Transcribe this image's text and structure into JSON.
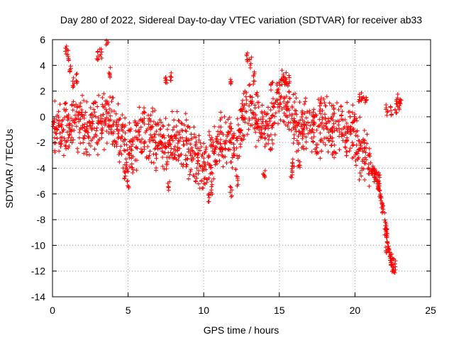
{
  "chart_data": {
    "type": "scatter",
    "title": "Day 280 of 2022, Sidereal Day-to-day VTEC variation (SDTVAR) for receiver ab33",
    "xlabel": "GPS time / hours",
    "ylabel": "SDTVAR / TECUs",
    "xlim": [
      0,
      25
    ],
    "ylim": [
      -14,
      6
    ],
    "xticks": [
      "0",
      "5",
      "10",
      "15",
      "20",
      "25"
    ],
    "yticks": [
      "-14",
      "-12",
      "-10",
      "-8",
      "-6",
      "-4",
      "-2",
      "0",
      "2",
      "4",
      "6"
    ],
    "grid": true,
    "marker": "+",
    "series_color": "#ff0000",
    "trend": [
      [
        0.0,
        -1.2
      ],
      [
        0.5,
        -1.0
      ],
      [
        1.0,
        -0.8
      ],
      [
        1.5,
        -0.5
      ],
      [
        2.0,
        -0.6
      ],
      [
        2.5,
        -0.9
      ],
      [
        3.0,
        -0.5
      ],
      [
        3.5,
        -0.2
      ],
      [
        4.0,
        -0.5
      ],
      [
        4.5,
        -1.5
      ],
      [
        5.0,
        -2.8
      ],
      [
        5.5,
        -2.0
      ],
      [
        6.0,
        -1.0
      ],
      [
        6.5,
        -1.5
      ],
      [
        7.0,
        -2.0
      ],
      [
        7.5,
        -2.2
      ],
      [
        8.0,
        -1.8
      ],
      [
        8.5,
        -1.5
      ],
      [
        9.0,
        -2.5
      ],
      [
        9.5,
        -3.0
      ],
      [
        10.0,
        -4.0
      ],
      [
        10.5,
        -3.0
      ],
      [
        11.0,
        -2.0
      ],
      [
        11.5,
        -1.5
      ],
      [
        12.0,
        -2.5
      ],
      [
        12.5,
        -0.5
      ],
      [
        13.0,
        0.5
      ],
      [
        13.5,
        0.0
      ],
      [
        14.0,
        -1.0
      ],
      [
        14.5,
        -0.5
      ],
      [
        15.0,
        1.5
      ],
      [
        15.5,
        1.0
      ],
      [
        16.0,
        -0.5
      ],
      [
        16.5,
        -0.8
      ],
      [
        17.0,
        -0.5
      ],
      [
        17.5,
        -1.0
      ],
      [
        18.0,
        -0.8
      ],
      [
        18.5,
        -1.2
      ],
      [
        19.0,
        -0.5
      ],
      [
        19.5,
        -0.8
      ],
      [
        20.0,
        -1.5
      ],
      [
        20.5,
        -3.0
      ],
      [
        21.0,
        -3.8
      ],
      [
        21.5,
        -5.0
      ],
      [
        22.0,
        -8.0
      ],
      [
        22.3,
        -11.0
      ],
      [
        22.7,
        -11.8
      ]
    ],
    "excursions": [
      [
        0.9,
        5.3
      ],
      [
        1.0,
        4.8
      ],
      [
        1.2,
        3.8
      ],
      [
        1.4,
        2.6
      ],
      [
        1.6,
        3.0
      ],
      [
        3.0,
        4.8
      ],
      [
        3.2,
        5.0
      ],
      [
        3.6,
        5.8
      ],
      [
        3.8,
        3.5
      ],
      [
        5.0,
        -5.2
      ],
      [
        4.8,
        -4.5
      ],
      [
        7.7,
        -5.3
      ],
      [
        7.5,
        3.0
      ],
      [
        7.8,
        3.0
      ],
      [
        10.3,
        -6.2
      ],
      [
        10.5,
        -5.7
      ],
      [
        11.8,
        -5.8
      ],
      [
        12.2,
        -5.0
      ],
      [
        11.8,
        2.8
      ],
      [
        12.9,
        4.7
      ],
      [
        13.1,
        4.2
      ],
      [
        13.3,
        3.2
      ],
      [
        14.0,
        -4.5
      ],
      [
        14.5,
        2.5
      ],
      [
        15.2,
        3.2
      ],
      [
        15.4,
        3.0
      ],
      [
        15.6,
        2.8
      ],
      [
        15.8,
        -4.3
      ],
      [
        15.9,
        -3.6
      ],
      [
        16.3,
        -3.8
      ],
      [
        20.3,
        1.5
      ],
      [
        20.5,
        1.7
      ],
      [
        20.7,
        1.4
      ],
      [
        22.1,
        0.5
      ],
      [
        22.4,
        0.5
      ],
      [
        22.7,
        0.6
      ],
      [
        22.8,
        1.4
      ],
      [
        22.9,
        0.8
      ],
      [
        23.0,
        1.0
      ],
      [
        21.3,
        -4.0
      ],
      [
        21.6,
        -4.8
      ],
      [
        21.8,
        -7.0
      ],
      [
        22.0,
        -9.0
      ],
      [
        22.1,
        -10.5
      ],
      [
        22.5,
        -11.8
      ]
    ]
  }
}
